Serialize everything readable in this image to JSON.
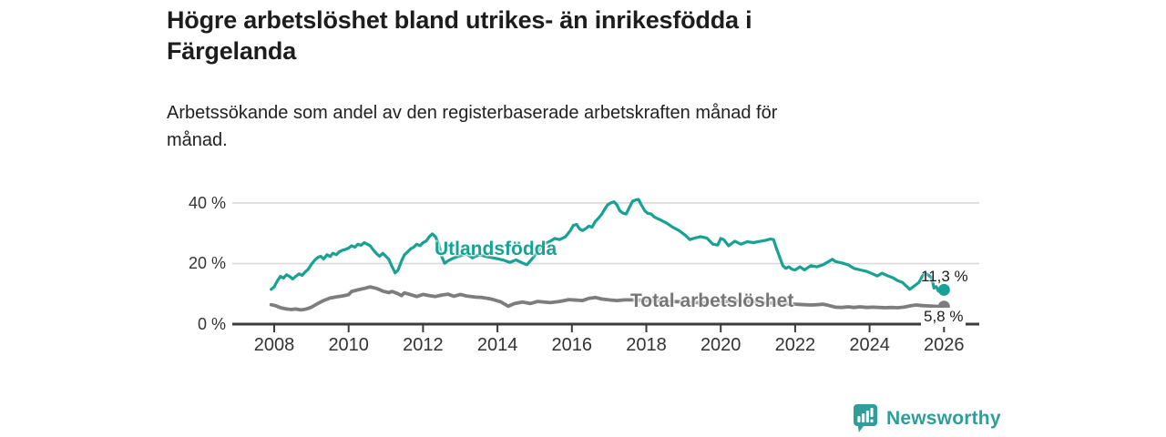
{
  "header": {
    "title_lines": [
      "Högre arbetslöshet bland utrikes- än inrikesfödda i",
      "Färgelanda"
    ],
    "subtitle_lines": [
      "Arbetssökande som andel av den registerbaserade arbetskraften månad för",
      "månad."
    ]
  },
  "chart_data": {
    "type": "line",
    "title": "Högre arbetslöshet bland utrikes- än inrikesfödda i Färgelanda",
    "subtitle": "Arbetssökande som andel av den registerbaserade arbetskraften månad för månad.",
    "xlabel": "",
    "ylabel": "",
    "xlim": [
      2006.9,
      2027
    ],
    "ylim": [
      0,
      44
    ],
    "grid": "horizontal",
    "legend_position": "inline-labels",
    "axis_color": "#3b3b3b",
    "grid_color": "#d8d8d8",
    "x_tick_values": [
      2008,
      2010,
      2012,
      2014,
      2016,
      2018,
      2020,
      2022,
      2024,
      2026
    ],
    "x_tick_labels": [
      "2008",
      "2010",
      "2012",
      "2014",
      "2016",
      "2018",
      "2020",
      "2022",
      "2024",
      "2026"
    ],
    "y_tick_values": [
      0,
      20,
      40
    ],
    "y_tick_labels": [
      "0 %",
      "20 %",
      "40 %"
    ],
    "series": [
      {
        "name": "Utlandsfödda",
        "color": "#17a294",
        "end_label": "11,3 %",
        "end_value": 11.3,
        "points": [
          [
            2007.92,
            11.5
          ],
          [
            2008.0,
            12.3
          ],
          [
            2008.08,
            14.2
          ],
          [
            2008.17,
            15.8
          ],
          [
            2008.25,
            15.2
          ],
          [
            2008.33,
            16.3
          ],
          [
            2008.42,
            15.7
          ],
          [
            2008.5,
            14.9
          ],
          [
            2008.58,
            15.8
          ],
          [
            2008.67,
            16.6
          ],
          [
            2008.75,
            16.1
          ],
          [
            2008.83,
            17.2
          ],
          [
            2008.92,
            18.2
          ],
          [
            2009.0,
            19.8
          ],
          [
            2009.08,
            21.0
          ],
          [
            2009.17,
            22.0
          ],
          [
            2009.25,
            22.4
          ],
          [
            2009.33,
            21.5
          ],
          [
            2009.42,
            22.9
          ],
          [
            2009.5,
            22.3
          ],
          [
            2009.58,
            23.4
          ],
          [
            2009.67,
            22.9
          ],
          [
            2009.75,
            23.9
          ],
          [
            2009.83,
            24.4
          ],
          [
            2009.92,
            24.7
          ],
          [
            2010.0,
            25.1
          ],
          [
            2010.08,
            25.9
          ],
          [
            2010.17,
            25.4
          ],
          [
            2010.25,
            26.4
          ],
          [
            2010.33,
            26.0
          ],
          [
            2010.42,
            26.9
          ],
          [
            2010.5,
            26.4
          ],
          [
            2010.58,
            25.9
          ],
          [
            2010.67,
            24.4
          ],
          [
            2010.75,
            23.3
          ],
          [
            2010.83,
            22.4
          ],
          [
            2010.92,
            23.4
          ],
          [
            2011.0,
            22.4
          ],
          [
            2011.08,
            21.4
          ],
          [
            2011.17,
            18.9
          ],
          [
            2011.25,
            16.9
          ],
          [
            2011.33,
            17.9
          ],
          [
            2011.42,
            20.8
          ],
          [
            2011.5,
            22.9
          ],
          [
            2011.58,
            23.8
          ],
          [
            2011.67,
            24.9
          ],
          [
            2011.75,
            25.4
          ],
          [
            2011.83,
            26.4
          ],
          [
            2011.92,
            25.9
          ],
          [
            2012.0,
            26.9
          ],
          [
            2012.08,
            27.4
          ],
          [
            2012.17,
            28.9
          ],
          [
            2012.25,
            29.8
          ],
          [
            2012.33,
            28.9
          ],
          [
            2012.42,
            26.4
          ],
          [
            2012.5,
            22.4
          ],
          [
            2012.58,
            20.1
          ],
          [
            2012.67,
            20.9
          ],
          [
            2012.83,
            21.9
          ],
          [
            2013.0,
            22.6
          ],
          [
            2013.17,
            23.1
          ],
          [
            2013.33,
            21.9
          ],
          [
            2013.5,
            22.9
          ],
          [
            2013.67,
            22.4
          ],
          [
            2013.83,
            22.0
          ],
          [
            2014.0,
            21.6
          ],
          [
            2014.17,
            21.1
          ],
          [
            2014.33,
            20.4
          ],
          [
            2014.5,
            21.2
          ],
          [
            2014.67,
            20.2
          ],
          [
            2014.79,
            19.6
          ],
          [
            2014.92,
            21.4
          ],
          [
            2015.08,
            23.9
          ],
          [
            2015.25,
            26.4
          ],
          [
            2015.42,
            27.4
          ],
          [
            2015.54,
            28.3
          ],
          [
            2015.67,
            27.9
          ],
          [
            2015.83,
            28.9
          ],
          [
            2015.96,
            30.9
          ],
          [
            2016.04,
            32.6
          ],
          [
            2016.13,
            32.9
          ],
          [
            2016.21,
            31.4
          ],
          [
            2016.29,
            30.9
          ],
          [
            2016.38,
            31.6
          ],
          [
            2016.46,
            32.4
          ],
          [
            2016.54,
            32.0
          ],
          [
            2016.63,
            33.9
          ],
          [
            2016.71,
            34.9
          ],
          [
            2016.79,
            36.1
          ],
          [
            2016.88,
            37.9
          ],
          [
            2016.96,
            39.4
          ],
          [
            2017.04,
            40.0
          ],
          [
            2017.13,
            40.4
          ],
          [
            2017.21,
            39.4
          ],
          [
            2017.29,
            37.4
          ],
          [
            2017.38,
            36.6
          ],
          [
            2017.46,
            36.4
          ],
          [
            2017.54,
            38.4
          ],
          [
            2017.63,
            40.6
          ],
          [
            2017.71,
            41.0
          ],
          [
            2017.79,
            41.2
          ],
          [
            2017.88,
            39.1
          ],
          [
            2017.96,
            37.4
          ],
          [
            2018.04,
            36.6
          ],
          [
            2018.13,
            36.4
          ],
          [
            2018.21,
            35.4
          ],
          [
            2018.38,
            34.4
          ],
          [
            2018.54,
            33.4
          ],
          [
            2018.71,
            32.0
          ],
          [
            2018.88,
            30.9
          ],
          [
            2019.04,
            29.4
          ],
          [
            2019.17,
            27.9
          ],
          [
            2019.29,
            28.4
          ],
          [
            2019.46,
            28.9
          ],
          [
            2019.63,
            28.4
          ],
          [
            2019.79,
            26.4
          ],
          [
            2019.92,
            26.1
          ],
          [
            2020.0,
            28.3
          ],
          [
            2020.08,
            27.9
          ],
          [
            2020.21,
            25.9
          ],
          [
            2020.38,
            27.4
          ],
          [
            2020.54,
            26.4
          ],
          [
            2020.71,
            27.2
          ],
          [
            2020.88,
            26.9
          ],
          [
            2021.04,
            27.3
          ],
          [
            2021.21,
            27.7
          ],
          [
            2021.33,
            28.1
          ],
          [
            2021.42,
            27.9
          ],
          [
            2021.5,
            24.9
          ],
          [
            2021.58,
            22.3
          ],
          [
            2021.67,
            19.3
          ],
          [
            2021.75,
            18.4
          ],
          [
            2021.83,
            18.9
          ],
          [
            2021.92,
            18.1
          ],
          [
            2022.0,
            17.9
          ],
          [
            2022.13,
            18.9
          ],
          [
            2022.25,
            17.9
          ],
          [
            2022.42,
            19.3
          ],
          [
            2022.58,
            18.9
          ],
          [
            2022.75,
            19.6
          ],
          [
            2022.92,
            20.8
          ],
          [
            2023.0,
            21.4
          ],
          [
            2023.08,
            20.7
          ],
          [
            2023.25,
            20.2
          ],
          [
            2023.42,
            19.6
          ],
          [
            2023.58,
            18.4
          ],
          [
            2023.75,
            17.9
          ],
          [
            2023.92,
            17.4
          ],
          [
            2024.08,
            16.6
          ],
          [
            2024.21,
            15.9
          ],
          [
            2024.33,
            16.8
          ],
          [
            2024.5,
            15.9
          ],
          [
            2024.63,
            15.3
          ],
          [
            2024.75,
            14.4
          ],
          [
            2024.88,
            13.8
          ],
          [
            2025.0,
            12.4
          ],
          [
            2025.08,
            11.5
          ],
          [
            2025.17,
            12.3
          ],
          [
            2025.33,
            13.8
          ],
          [
            2025.42,
            15.9
          ],
          [
            2025.5,
            16.8
          ],
          [
            2025.58,
            16.2
          ],
          [
            2025.67,
            15.3
          ],
          [
            2025.73,
            11.9
          ],
          [
            2025.79,
            12.4
          ],
          [
            2025.85,
            10.9
          ],
          [
            2025.92,
            11.1
          ],
          [
            2026.0,
            11.3
          ]
        ]
      },
      {
        "name": "Total arbetslöshet",
        "color": "#7d7d7d",
        "end_label": "5,8 %",
        "end_value": 5.8,
        "points": [
          [
            2007.92,
            6.4
          ],
          [
            2008.0,
            6.2
          ],
          [
            2008.08,
            5.9
          ],
          [
            2008.17,
            5.4
          ],
          [
            2008.33,
            5.0
          ],
          [
            2008.46,
            4.8
          ],
          [
            2008.58,
            5.0
          ],
          [
            2008.71,
            4.7
          ],
          [
            2008.83,
            4.9
          ],
          [
            2008.92,
            5.2
          ],
          [
            2009.0,
            5.6
          ],
          [
            2009.17,
            6.8
          ],
          [
            2009.33,
            7.8
          ],
          [
            2009.5,
            8.6
          ],
          [
            2009.67,
            9.0
          ],
          [
            2009.83,
            9.3
          ],
          [
            2010.0,
            9.7
          ],
          [
            2010.08,
            10.8
          ],
          [
            2010.25,
            11.3
          ],
          [
            2010.42,
            11.8
          ],
          [
            2010.58,
            12.3
          ],
          [
            2010.75,
            11.8
          ],
          [
            2010.92,
            10.9
          ],
          [
            2011.08,
            10.4
          ],
          [
            2011.17,
            10.8
          ],
          [
            2011.33,
            10.0
          ],
          [
            2011.42,
            9.4
          ],
          [
            2011.5,
            10.3
          ],
          [
            2011.67,
            9.7
          ],
          [
            2011.83,
            9.1
          ],
          [
            2012.0,
            9.8
          ],
          [
            2012.17,
            9.4
          ],
          [
            2012.33,
            9.1
          ],
          [
            2012.5,
            9.6
          ],
          [
            2012.67,
            9.9
          ],
          [
            2012.83,
            9.2
          ],
          [
            2013.0,
            9.8
          ],
          [
            2013.17,
            9.3
          ],
          [
            2013.42,
            8.9
          ],
          [
            2013.58,
            8.8
          ],
          [
            2013.83,
            8.3
          ],
          [
            2014.08,
            7.4
          ],
          [
            2014.29,
            5.9
          ],
          [
            2014.46,
            6.8
          ],
          [
            2014.67,
            7.3
          ],
          [
            2014.88,
            6.8
          ],
          [
            2015.08,
            7.5
          ],
          [
            2015.42,
            7.1
          ],
          [
            2015.67,
            7.5
          ],
          [
            2015.92,
            8.1
          ],
          [
            2016.13,
            7.9
          ],
          [
            2016.29,
            7.8
          ],
          [
            2016.46,
            8.5
          ],
          [
            2016.63,
            8.8
          ],
          [
            2016.79,
            8.3
          ],
          [
            2017.0,
            8.0
          ],
          [
            2017.21,
            7.8
          ],
          [
            2017.42,
            8.0
          ],
          [
            2017.58,
            8.0
          ],
          [
            2017.83,
            7.9
          ],
          [
            2018.08,
            7.8
          ],
          [
            2018.5,
            7.6
          ],
          [
            2019.0,
            7.3
          ],
          [
            2019.5,
            7.0
          ],
          [
            2020.0,
            7.4
          ],
          [
            2020.5,
            7.7
          ],
          [
            2021.0,
            7.2
          ],
          [
            2021.5,
            6.9
          ],
          [
            2022.0,
            6.6
          ],
          [
            2022.25,
            6.4
          ],
          [
            2022.42,
            6.3
          ],
          [
            2022.58,
            6.4
          ],
          [
            2022.75,
            6.6
          ],
          [
            2022.92,
            6.1
          ],
          [
            2023.08,
            5.6
          ],
          [
            2023.25,
            5.5
          ],
          [
            2023.42,
            5.7
          ],
          [
            2023.58,
            5.5
          ],
          [
            2023.75,
            5.7
          ],
          [
            2023.92,
            5.5
          ],
          [
            2024.08,
            5.6
          ],
          [
            2024.25,
            5.5
          ],
          [
            2024.42,
            5.4
          ],
          [
            2024.58,
            5.5
          ],
          [
            2024.75,
            5.4
          ],
          [
            2024.92,
            5.6
          ],
          [
            2025.08,
            6.0
          ],
          [
            2025.25,
            6.3
          ],
          [
            2025.42,
            6.1
          ],
          [
            2025.58,
            6.0
          ],
          [
            2025.75,
            5.9
          ],
          [
            2025.92,
            5.8
          ],
          [
            2026.0,
            5.8
          ]
        ]
      }
    ]
  },
  "branding": {
    "logo_text": "Newsworthy",
    "logo_icon": "bar-chart-speech-bubble-icon",
    "brand_color": "#2f9e9b"
  }
}
